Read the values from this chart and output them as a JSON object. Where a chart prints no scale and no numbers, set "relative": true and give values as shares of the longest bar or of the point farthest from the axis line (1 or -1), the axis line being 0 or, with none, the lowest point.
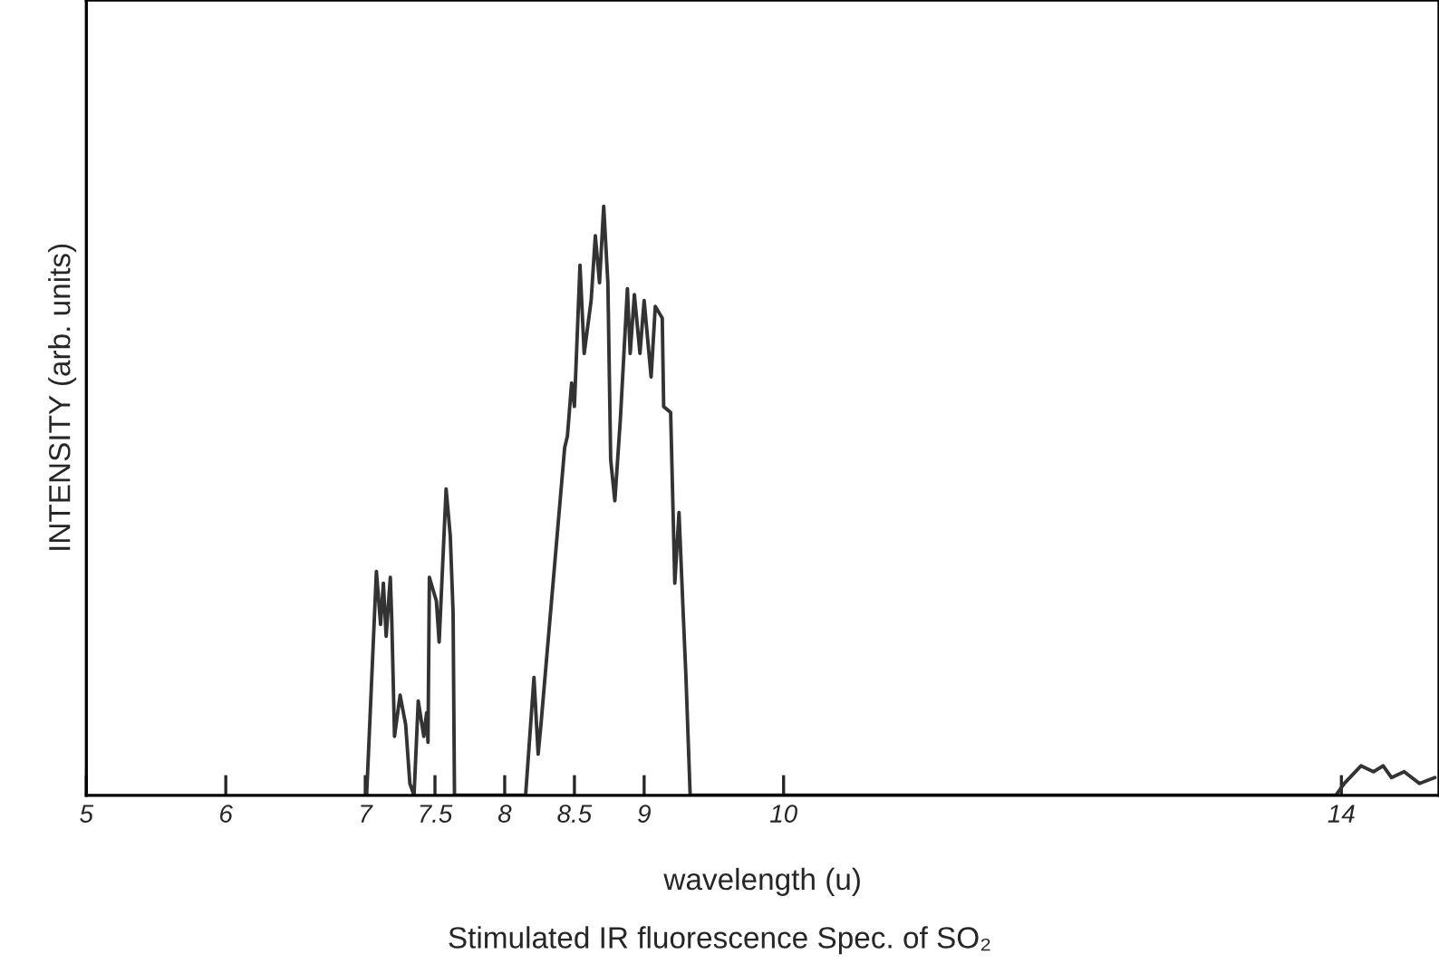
{
  "chart_data": {
    "type": "line",
    "relative": true,
    "title": "Stimulated IR fluorescence Spec. of SO₂",
    "xlabel": "wavelength (u)",
    "ylabel": "INTENSITY (arb. units)",
    "xlim": [
      5,
      14.7
    ],
    "xticks": [
      5,
      6,
      7,
      7.5,
      8,
      8.5,
      9,
      10,
      14
    ],
    "grid": false,
    "legend": false,
    "series": [
      {
        "color": "#333333",
        "x": [
          7.01,
          7.08,
          7.11,
          7.13,
          7.15,
          7.18,
          7.19,
          7.21,
          7.25,
          7.29,
          7.32,
          7.35,
          7.38,
          7.42,
          7.44,
          7.45,
          7.46,
          7.51,
          7.53,
          7.58,
          7.61,
          7.63,
          7.64,
          8.15,
          8.21,
          8.24,
          8.26,
          8.43,
          8.45,
          8.48,
          8.5,
          8.54,
          8.57,
          8.62,
          8.65,
          8.68,
          8.71,
          8.74,
          8.76,
          8.79,
          8.83,
          8.88,
          8.9,
          8.93,
          8.97,
          9.0,
          9.05,
          9.08,
          9.13,
          9.14,
          9.19,
          9.22,
          9.25,
          9.28,
          9.3,
          9.33,
          13.96,
          14.02,
          14.14,
          14.23,
          14.3,
          14.36,
          14.45,
          14.56,
          14.67
        ],
        "values": [
          0,
          0.38,
          0.29,
          0.36,
          0.27,
          0.37,
          0.3,
          0.1,
          0.17,
          0.12,
          0.02,
          0,
          0.16,
          0.1,
          0.14,
          0.09,
          0.37,
          0.33,
          0.26,
          0.52,
          0.44,
          0.31,
          0,
          0,
          0.2,
          0.07,
          0.12,
          0.59,
          0.61,
          0.7,
          0.66,
          0.9,
          0.75,
          0.84,
          0.95,
          0.87,
          1.0,
          0.87,
          0.57,
          0.5,
          0.64,
          0.86,
          0.75,
          0.85,
          0.75,
          0.84,
          0.71,
          0.83,
          0.81,
          0.66,
          0.65,
          0.36,
          0.48,
          0.31,
          0.2,
          0,
          0,
          0.02,
          0.05,
          0.04,
          0.05,
          0.03,
          0.04,
          0.02,
          0.03
        ]
      }
    ]
  }
}
